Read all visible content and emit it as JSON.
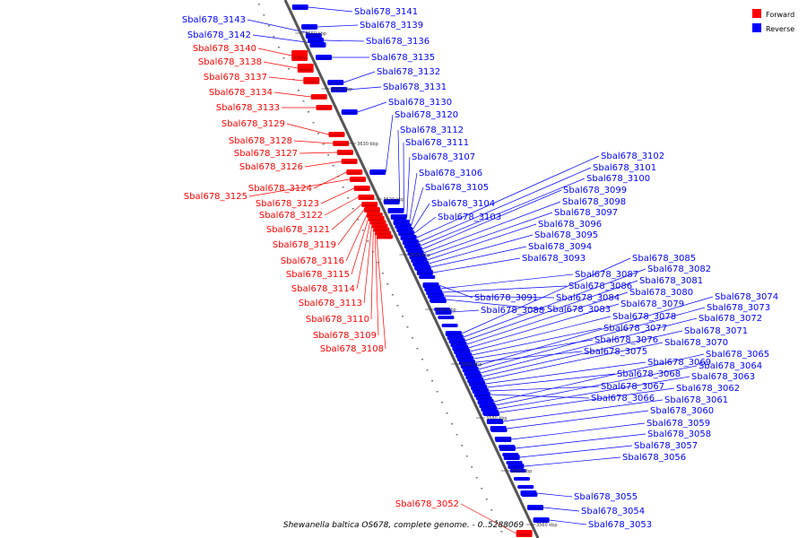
{
  "caption": "Shewanella baltica OS678, complete genome. - 0..5288069",
  "legend": [
    {
      "label": "Forward",
      "color": "#ff0000"
    },
    {
      "label": "Reverse",
      "color": "#0000ff"
    }
  ],
  "scale_ticks": [
    "3650 kbp",
    "3640 kbp",
    "3630 kbp",
    "3620 kbp",
    "3610 kbp",
    "3600 kbp",
    "3590 kbp",
    "3580 kbp",
    "3570 kbp",
    "3560 kbp"
  ],
  "forward_genes": [
    "Sbal678_3140",
    "Sbal678_3138",
    "Sbal678_3137",
    "Sbal678_3134",
    "Sbal678_3133",
    "Sbal678_3129",
    "Sbal678_3128",
    "Sbal678_3127",
    "Sbal678_3126",
    "Sbal678_3124",
    "Sbal678_3125",
    "Sbal678_3123",
    "Sbal678_3122",
    "Sbal678_3121",
    "Sbal678_3119",
    "Sbal678_3116",
    "Sbal678_3115",
    "Sbal678_3114",
    "Sbal678_3113",
    "Sbal678_3110",
    "Sbal678_3109",
    "Sbal678_3108",
    "Sbal678_3052"
  ],
  "reverse_left_genes": [
    "Sbal678_3143",
    "Sbal678_3142"
  ],
  "reverse_genes": [
    "Sbal678_3141",
    "Sbal678_3139",
    "Sbal678_3136",
    "Sbal678_3135",
    "Sbal678_3132",
    "Sbal678_3131",
    "Sbal678_3130",
    "Sbal678_3120",
    "Sbal678_3112",
    "Sbal678_3111",
    "Sbal678_3107",
    "Sbal678_3106",
    "Sbal678_3105",
    "Sbal678_3104",
    "Sbal678_3103",
    "Sbal678_3102",
    "Sbal678_3101",
    "Sbal678_3100",
    "Sbal678_3099",
    "Sbal678_3098",
    "Sbal678_3097",
    "Sbal678_3096",
    "Sbal678_3095",
    "Sbal678_3094",
    "Sbal678_3093",
    "Sbal678_3091",
    "Sbal678_3088",
    "Sbal678_3087",
    "Sbal678_3086",
    "Sbal678_3084",
    "Sbal678_3083",
    "Sbal678_3085",
    "Sbal678_3082",
    "Sbal678_3081",
    "Sbal678_3080",
    "Sbal678_3079",
    "Sbal678_3078",
    "Sbal678_3077",
    "Sbal678_3076",
    "Sbal678_3075",
    "Sbal678_3074",
    "Sbal678_3073",
    "Sbal678_3072",
    "Sbal678_3071",
    "Sbal678_3070",
    "Sbal678_3069",
    "Sbal678_3068",
    "Sbal678_3067",
    "Sbal678_3066",
    "Sbal678_3065",
    "Sbal678_3064",
    "Sbal678_3063",
    "Sbal678_3062",
    "Sbal678_3061",
    "Sbal678_3060",
    "Sbal678_3059",
    "Sbal678_3058",
    "Sbal678_3057",
    "Sbal678_3056",
    "Sbal678_3055",
    "Sbal678_3054",
    "Sbal678_3053"
  ]
}
